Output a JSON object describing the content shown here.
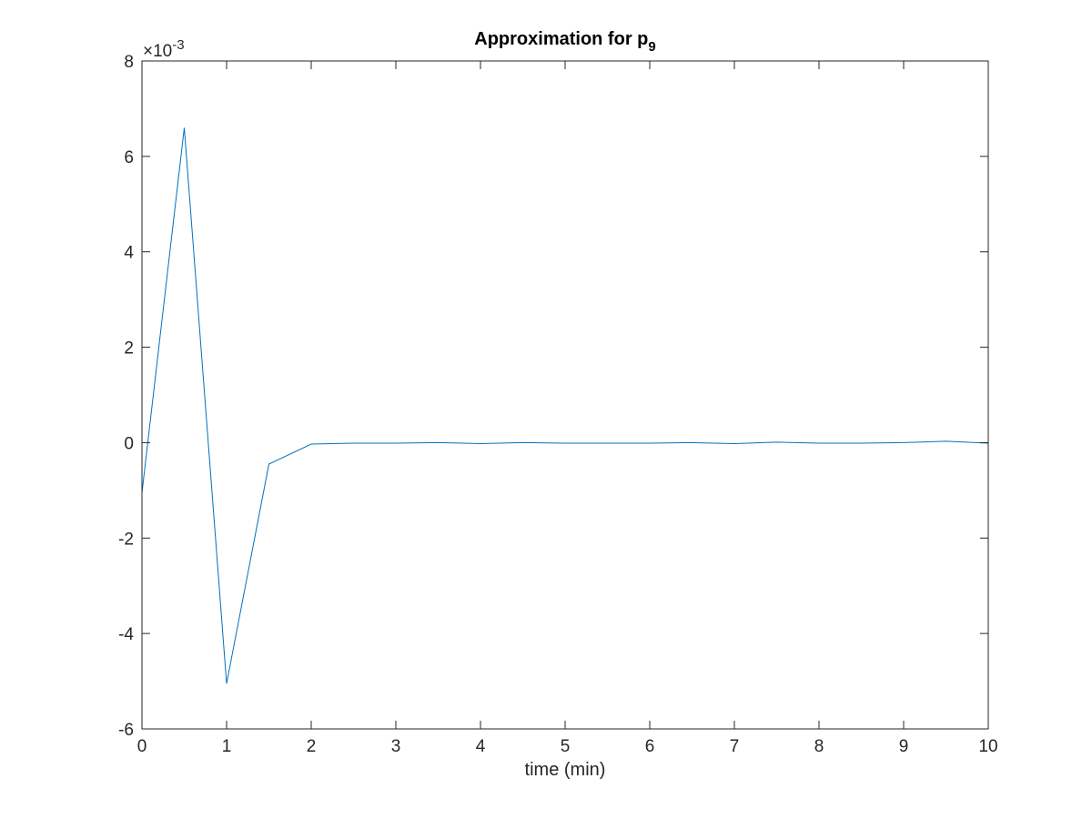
{
  "chart_data": {
    "type": "line",
    "title": "Approximation for p",
    "title_subscript": "9",
    "xlabel": "time (min)",
    "ylabel": "",
    "y_multiplier_label": "×10",
    "y_multiplier_exponent": "-3",
    "xlim": [
      0,
      10
    ],
    "ylim": [
      -6,
      8
    ],
    "x_ticks": [
      0,
      1,
      2,
      3,
      4,
      5,
      6,
      7,
      8,
      9,
      10
    ],
    "x_tick_labels": [
      "0",
      "1",
      "2",
      "3",
      "4",
      "5",
      "6",
      "7",
      "8",
      "9",
      "10"
    ],
    "y_ticks": [
      -6,
      -4,
      -2,
      0,
      2,
      4,
      6,
      8
    ],
    "y_tick_labels": [
      "-6",
      "-4",
      "-2",
      "0",
      "2",
      "4",
      "6",
      "8"
    ],
    "grid": false,
    "series": [
      {
        "color": "#0072BD",
        "x": [
          0,
          0.5,
          1,
          1.5,
          2,
          2.5,
          3,
          3.5,
          4,
          4.5,
          5,
          5.5,
          6,
          6.5,
          7,
          7.5,
          8,
          8.5,
          9,
          9.5,
          10
        ],
        "y": [
          -1.05,
          6.6,
          -5.05,
          -0.45,
          -0.03,
          -0.01,
          -0.01,
          0.0,
          -0.02,
          0.0,
          -0.01,
          -0.01,
          -0.01,
          0.0,
          -0.02,
          0.01,
          -0.01,
          -0.01,
          0.0,
          0.03,
          -0.01
        ]
      }
    ]
  }
}
